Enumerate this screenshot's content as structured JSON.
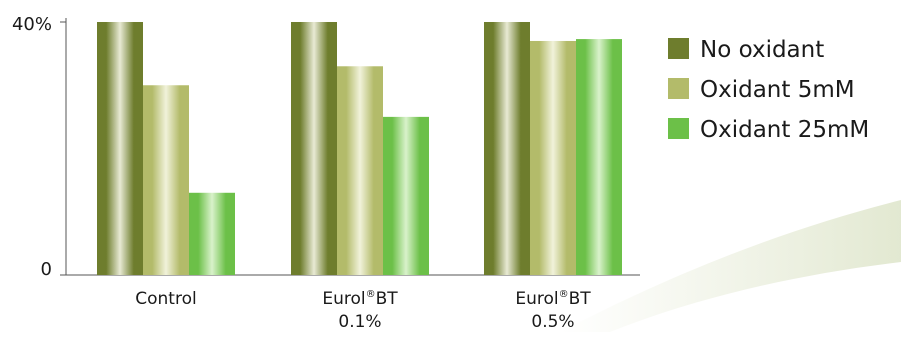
{
  "chart_data": {
    "type": "bar",
    "categories": [
      {
        "name": "Eurol",
        "sup": "",
        "rest": "",
        "line2": "",
        "display": "Control"
      },
      {
        "name": "Eurol",
        "sup": "®",
        "rest": "BT",
        "line2": "0.1%",
        "display": "Eurol®BT 0.1%"
      },
      {
        "name": "Eurol",
        "sup": "®",
        "rest": "BT",
        "line2": "0.5%",
        "display": "Eurol®BT 0.5%"
      }
    ],
    "series": [
      {
        "name": "No oxidant",
        "values": [
          40,
          40,
          40
        ],
        "color": "#6e7d2d",
        "highlight": "#e8ead4"
      },
      {
        "name": "Oxidant 5mM",
        "values": [
          30,
          33,
          37
        ],
        "color": "#b3bb6a",
        "highlight": "#f1f2da"
      },
      {
        "name": "Oxidant 25mM",
        "values": [
          13,
          25,
          37.3
        ],
        "color": "#6cc048",
        "highlight": "#d9f2cb"
      }
    ],
    "yticks": [
      {
        "value": 0,
        "label": "0"
      },
      {
        "value": 40,
        "label": "40%"
      }
    ],
    "ylim": [
      0,
      40
    ],
    "grid": false,
    "legend_position": "right"
  }
}
